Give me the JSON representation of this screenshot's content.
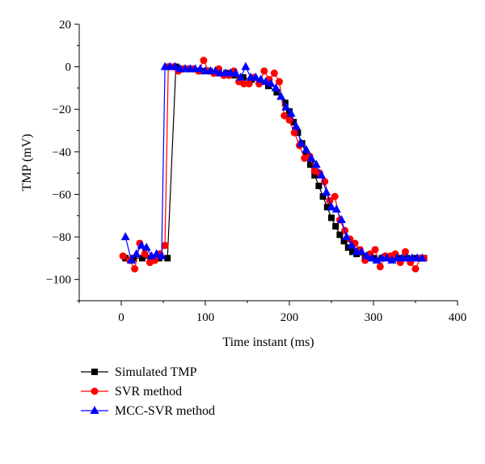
{
  "chart_data": {
    "type": "line",
    "title": "",
    "xlabel": "Time instant (ms)",
    "ylabel": "TMP (mV)",
    "xlim": [
      -50,
      400
    ],
    "ylim": [
      -110,
      20
    ],
    "xticks": [
      0,
      100,
      200,
      300,
      400
    ],
    "yticks": [
      20,
      0,
      -20,
      -40,
      -60,
      -80,
      -100
    ],
    "grid": false,
    "legend_position": "bottom-left-outside",
    "series": [
      {
        "name": "Simulated TMP",
        "color": "#000000",
        "marker": "square",
        "x": [
          5,
          15,
          25,
          35,
          45,
          55,
          65,
          75,
          85,
          95,
          105,
          115,
          125,
          135,
          145,
          155,
          165,
          175,
          185,
          195,
          200,
          205,
          210,
          215,
          220,
          225,
          230,
          235,
          240,
          245,
          250,
          255,
          260,
          265,
          270,
          275,
          280,
          290,
          300,
          310,
          320,
          330,
          340,
          350,
          360
        ],
        "y": [
          -90,
          -90,
          -90,
          -90,
          -90,
          -90,
          0,
          -1,
          -1,
          -2,
          -2,
          -3,
          -3,
          -4,
          -5,
          -6,
          -7,
          -9,
          -12,
          -17,
          -21,
          -26,
          -31,
          -36,
          -41,
          -46,
          -51,
          -56,
          -61,
          -66,
          -71,
          -75,
          -79,
          -82,
          -85,
          -87,
          -88,
          -89,
          -90,
          -90,
          -90,
          -90,
          -90,
          -90,
          -90
        ]
      },
      {
        "name": "SVR method",
        "color": "#ff0000",
        "marker": "circle",
        "x": [
          2,
          10,
          16,
          22,
          28,
          34,
          40,
          46,
          52,
          56,
          62,
          68,
          74,
          80,
          86,
          92,
          98,
          104,
          110,
          116,
          122,
          128,
          134,
          140,
          146,
          152,
          158,
          164,
          170,
          176,
          182,
          188,
          194,
          200,
          206,
          212,
          218,
          224,
          230,
          236,
          242,
          248,
          254,
          260,
          266,
          272,
          278,
          284,
          290,
          296,
          302,
          308,
          314,
          320,
          326,
          332,
          338,
          344,
          350,
          356,
          360
        ],
        "y": [
          -89,
          -91,
          -95,
          -83,
          -88,
          -92,
          -91,
          -88,
          -84,
          0,
          0,
          -2,
          -1,
          -1,
          -1,
          -2,
          3,
          -2,
          -3,
          -1,
          -4,
          -4,
          -2,
          -7,
          -8,
          -8,
          -5,
          -8,
          -2,
          -6,
          -3,
          -7,
          -23,
          -25,
          -31,
          -37,
          -43,
          -42,
          -49,
          -50,
          -54,
          -63,
          -61,
          -72,
          -77,
          -81,
          -83,
          -86,
          -91,
          -88,
          -86,
          -94,
          -89,
          -89,
          -88,
          -92,
          -87,
          -92,
          -95,
          -90,
          -90
        ]
      },
      {
        "name": "MCC-SVR method",
        "color": "#0000ff",
        "marker": "triangle",
        "x": [
          5,
          12,
          18,
          24,
          30,
          36,
          42,
          48,
          52,
          58,
          64,
          70,
          76,
          82,
          88,
          94,
          100,
          106,
          112,
          118,
          124,
          130,
          136,
          142,
          148,
          154,
          160,
          166,
          172,
          178,
          184,
          190,
          196,
          202,
          208,
          214,
          220,
          226,
          232,
          238,
          244,
          250,
          256,
          262,
          268,
          274,
          280,
          286,
          292,
          298,
          304,
          310,
          316,
          322,
          328,
          334,
          340,
          346,
          352,
          358
        ],
        "y": [
          -80,
          -91,
          -88,
          -84,
          -85,
          -89,
          -88,
          -89,
          0,
          0,
          0,
          -1,
          -1,
          -1,
          -1,
          -1,
          -2,
          -2,
          -2,
          -3,
          -3,
          -3,
          -3,
          -5,
          0,
          -5,
          -5,
          -6,
          -7,
          -8,
          -10,
          -14,
          -19,
          -22,
          -28,
          -36,
          -39,
          -43,
          -46,
          -51,
          -59,
          -66,
          -67,
          -72,
          -80,
          -84,
          -87,
          -87,
          -89,
          -90,
          -91,
          -90,
          -90,
          -91,
          -90,
          -90,
          -90,
          -90,
          -90,
          -90
        ]
      }
    ]
  }
}
